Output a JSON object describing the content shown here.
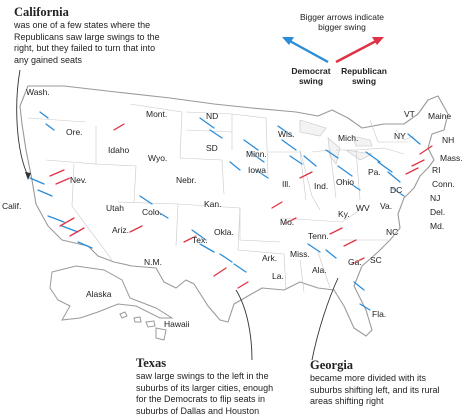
{
  "legend": {
    "caption_line1": "Bigger arrows indicate",
    "caption_line2": "bigger swing",
    "democrat_line1": "Democrat",
    "democrat_line2": "swing",
    "republican_line1": "Republican",
    "republican_line2": "swing",
    "democrat_color": "#2b8cd8",
    "republican_color": "#e03245"
  },
  "annotations": {
    "california": {
      "title": "California",
      "lines": [
        "was one of a few states where the",
        "Republicans saw large swings to the",
        "right, but they failed to turn that into",
        "any gained seats"
      ]
    },
    "texas": {
      "title": "Texas",
      "lines": [
        "saw large swings to the left in the",
        "suburbs of its larger cities, enough",
        "for the Democrats to flip seats in",
        "suburbs of Dallas and Houston"
      ]
    },
    "georgia": {
      "title": "Georgia",
      "lines": [
        "became more divided with its",
        "suburbs shifting left, and its rural",
        "areas shifting right"
      ]
    }
  },
  "states": {
    "wash": "Wash.",
    "ore": "Ore.",
    "calif": "Calif.",
    "nev": "Nev.",
    "idaho": "Idaho",
    "mont": "Mont.",
    "wyo": "Wyo.",
    "utah": "Utah",
    "ariz": "Ariz.",
    "colo": "Colo.",
    "nm": "N.M.",
    "nd": "ND",
    "sd": "SD",
    "nebr": "Nebr.",
    "kan": "Kan.",
    "okla": "Okla.",
    "tex": "Tex.",
    "minn": "Minn.",
    "iowa": "Iowa",
    "mo": "Mo.",
    "ark": "Ark.",
    "la": "La.",
    "wis": "Wis.",
    "ill": "Ill.",
    "mich": "Mich.",
    "ind": "Ind.",
    "ohio": "Ohio",
    "ky": "Ky.",
    "tenn": "Tenn.",
    "miss": "Miss.",
    "ala": "Ala.",
    "ga": "Ga.",
    "fla": "Fla.",
    "sc": "SC",
    "nc": "NC",
    "va": "Va.",
    "wv": "WV",
    "pa": "Pa.",
    "ny": "NY",
    "vt": "VT",
    "nh": "NH",
    "maine": "Maine",
    "mass": "Mass.",
    "ri": "RI",
    "conn": "Conn.",
    "nj": "NJ",
    "del": "Del.",
    "md": "Md.",
    "dc": "DC",
    "alaska": "Alaska",
    "hawaii": "Hawaii"
  }
}
